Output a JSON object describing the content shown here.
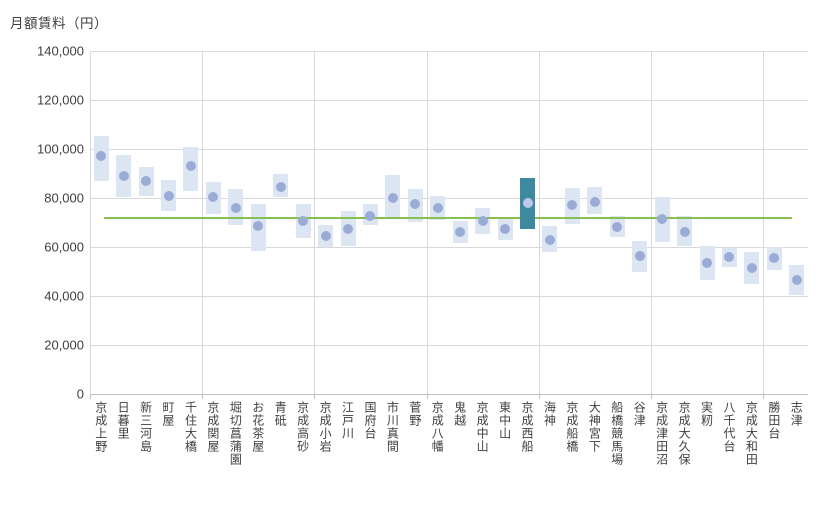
{
  "chart_data": {
    "type": "bar",
    "subtype": "floating-range-bars-with-median-dot",
    "title": "月額賃料（円）",
    "ylabel": "月額賃料（円）",
    "xlabel": "",
    "grid": true,
    "legend": false,
    "ylim": [
      0,
      140000
    ],
    "ytick_step": 20000,
    "ytick_labels": [
      "0",
      "20,000",
      "40,000",
      "60,000",
      "80,000",
      "100,000",
      "120,000",
      "140,000"
    ],
    "category_group_size": 5,
    "categories": [
      "京成上野",
      "日暮里",
      "新三河島",
      "町屋",
      "千住大橋",
      "京成関屋",
      "堀切菖蒲園",
      "お花茶屋",
      "青砥",
      "京成高砂",
      "京成小岩",
      "江戸川",
      "国府台",
      "市川真間",
      "菅野",
      "京成八幡",
      "鬼越",
      "京成中山",
      "東中山",
      "京成西船",
      "海神",
      "京成船橋",
      "大神宮下",
      "船橋競馬場",
      "谷津",
      "京成津田沼",
      "京成大久保",
      "実籾",
      "八千代台",
      "京成大和田",
      "勝田台",
      "志津"
    ],
    "series": [
      {
        "name": "range_low",
        "values": [
          87000,
          80500,
          81000,
          74500,
          83000,
          73500,
          69000,
          58500,
          80500,
          63500,
          60000,
          60500,
          69000,
          71500,
          70000,
          71000,
          61500,
          65500,
          63000,
          67500,
          58000,
          69500,
          73500,
          64000,
          50000,
          62000,
          60500,
          46500,
          52000,
          45000,
          50500,
          40500
        ]
      },
      {
        "name": "range_high",
        "values": [
          105500,
          97500,
          92500,
          87500,
          101000,
          86500,
          83500,
          77500,
          90000,
          77500,
          69000,
          74500,
          77500,
          89500,
          83500,
          81000,
          70500,
          76000,
          72000,
          88000,
          68500,
          84000,
          84500,
          72500,
          62500,
          80500,
          72500,
          60500,
          59500,
          58000,
          60000,
          52500
        ]
      },
      {
        "name": "median_dot",
        "values": [
          97000,
          89000,
          87000,
          81000,
          93000,
          80500,
          76000,
          68500,
          84500,
          70500,
          64500,
          67500,
          72500,
          80000,
          77500,
          76000,
          66000,
          70500,
          67500,
          78000,
          63000,
          77000,
          78500,
          68000,
          56500,
          71500,
          66000,
          53500,
          56000,
          51500,
          55500,
          46500
        ]
      }
    ],
    "highlight_index": 19,
    "highlight_category": "京成西船",
    "reference_line": {
      "value": 71700,
      "color": "#86c04e"
    },
    "colors": {
      "bar_fill": "#dce6f2",
      "bar_highlight": "#3d89a0",
      "dot": "#9aabd6",
      "dot_highlight": "#bcc9ea",
      "gridline": "#d9d9d9",
      "axis_line": "#bfbfbf",
      "text": "#3f3f3f",
      "background": "#ffffff"
    }
  }
}
